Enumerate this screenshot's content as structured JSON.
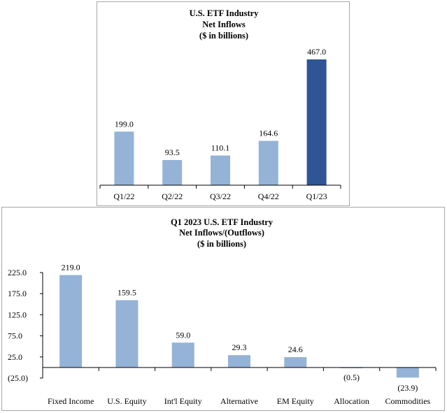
{
  "chart_data": [
    {
      "type": "bar",
      "title_lines": [
        "U.S. ETF Industry",
        "Net Inflows",
        "($ in billions)"
      ],
      "categories": [
        "Q1/22",
        "Q2/22",
        "Q3/22",
        "Q4/22",
        "Q1/23"
      ],
      "values": [
        199.0,
        93.5,
        110.1,
        164.6,
        467.0
      ],
      "value_labels": [
        "199.0",
        "93.5",
        "110.1",
        "164.6",
        "467.0"
      ],
      "highlight_index": 4,
      "colors": {
        "bar": "#95b3d7",
        "highlight": "#2f5597"
      },
      "ylim": [
        0,
        467.0
      ],
      "xlabel": "",
      "ylabel": ""
    },
    {
      "type": "bar",
      "title_lines": [
        "Q1 2023 U.S. ETF Industry",
        "Net Inflows/(Outflows)",
        "($ in billions)"
      ],
      "categories": [
        "Fixed Income",
        "U.S. Equity",
        "Int'l Equity",
        "Alternative",
        "EM Equity",
        "Allocation",
        "Commodities"
      ],
      "values": [
        219.0,
        159.5,
        59.0,
        29.3,
        24.6,
        -0.5,
        -23.9
      ],
      "value_labels": [
        "219.0",
        "159.5",
        "59.0",
        "29.3",
        "24.6",
        "(0.5)",
        "(23.9)"
      ],
      "ylim": [
        -25.0,
        225.0
      ],
      "yticks": [
        225.0,
        175.0,
        125.0,
        75.0,
        25.0,
        -25.0
      ],
      "ytick_labels": [
        "225.0",
        "175.0",
        "125.0",
        "75.0",
        "25.0",
        "(25.0)"
      ],
      "colors": {
        "bar": "#95b3d7"
      },
      "xlabel": "",
      "ylabel": ""
    }
  ]
}
